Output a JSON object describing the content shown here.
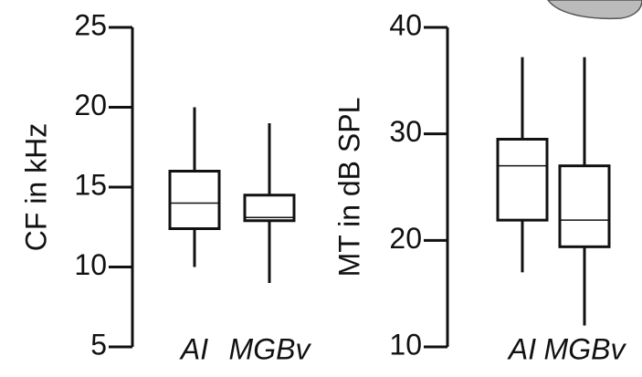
{
  "chart_data": [
    {
      "type": "box",
      "ylabel": "CF in kHz",
      "categories": [
        "AI",
        "MGBv"
      ],
      "boxes": [
        {
          "low": 10,
          "q1": 12.4,
          "median": 14,
          "q3": 16,
          "high": 20
        },
        {
          "low": 9,
          "q1": 12.9,
          "median": 13.1,
          "q3": 14.5,
          "high": 19
        }
      ],
      "ylim": [
        5,
        25
      ],
      "yticks": [
        5,
        10,
        15,
        20,
        25
      ]
    },
    {
      "type": "box",
      "ylabel": "MT in dB SPL",
      "categories": [
        "AI",
        "MGBv"
      ],
      "boxes": [
        {
          "low": 17,
          "q1": 21.9,
          "median": 27,
          "q3": 29.5,
          "high": 37.2
        },
        {
          "low": 12,
          "q1": 19.4,
          "median": 21.9,
          "q3": 27,
          "high": 37.2
        }
      ],
      "ylim": [
        10,
        40
      ],
      "yticks": [
        10,
        20,
        30,
        40
      ]
    }
  ]
}
